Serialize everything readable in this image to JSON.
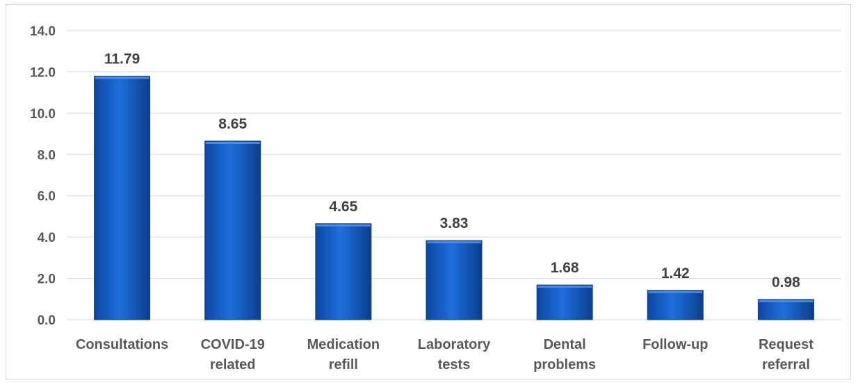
{
  "chart_data": {
    "type": "bar",
    "title": "",
    "xlabel": "",
    "ylabel": "",
    "ylim": [
      0,
      14
    ],
    "yticks": [
      "0.0",
      "2.0",
      "4.0",
      "6.0",
      "8.0",
      "10.0",
      "12.0",
      "14.0"
    ],
    "grid": true,
    "legend": "none",
    "categories": [
      [
        "Consultations"
      ],
      [
        "COVID-19",
        "related"
      ],
      [
        "Medication",
        "refill"
      ],
      [
        "Laboratory",
        "tests"
      ],
      [
        "Dental",
        "problems"
      ],
      [
        "Follow-up"
      ],
      [
        "Request",
        "referral"
      ]
    ],
    "values": [
      11.79,
      8.65,
      4.65,
      3.83,
      1.68,
      1.42,
      0.98
    ],
    "data_labels": [
      "11.79",
      "8.65",
      "4.65",
      "3.83",
      "1.68",
      "1.42",
      "0.98"
    ],
    "colors": {
      "bar": "#1565c9",
      "bar_dark": "#0b3f8c",
      "bar_light": "#4a90e8",
      "grid": "#d9d9d9",
      "text": "#595959"
    }
  }
}
